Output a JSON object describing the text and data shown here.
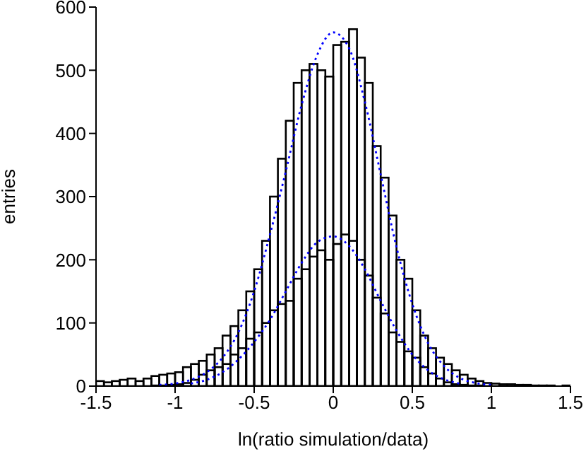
{
  "chart_data": {
    "type": "histogram",
    "xlabel": "ln(ratio simulation/data)",
    "ylabel": "entries",
    "xlim": [
      -1.5,
      1.5
    ],
    "xticks": [
      -1.5,
      -1,
      -0.5,
      0,
      0.5,
      1,
      1.5
    ],
    "ylim": [
      0,
      600
    ],
    "yticks": [
      0,
      100,
      200,
      300,
      400,
      500,
      600
    ],
    "bins": [
      -1.5,
      -1.45,
      -1.4,
      -1.35,
      -1.3,
      -1.25,
      -1.2,
      -1.15,
      -1.1,
      -1.05,
      -1.0,
      -0.95,
      -0.9,
      -0.85,
      -0.8,
      -0.75,
      -0.7,
      -0.65,
      -0.6,
      -0.55,
      -0.5,
      -0.45,
      -0.4,
      -0.35,
      -0.3,
      -0.25,
      -0.2,
      -0.15,
      -0.1,
      -0.05,
      0,
      0.05,
      0.1,
      0.15,
      0.2,
      0.25,
      0.3,
      0.35,
      0.4,
      0.45,
      0.5,
      0.55,
      0.6,
      0.65,
      0.7,
      0.75,
      0.8,
      0.85,
      0.9,
      0.95,
      1.0,
      1.05,
      1.1,
      1.15,
      1.2,
      1.25,
      1.3,
      1.35,
      1.4,
      1.45,
      1.5
    ],
    "series": [
      {
        "color": "#000000",
        "values": [
          8,
          6,
          8,
          10,
          12,
          8,
          12,
          16,
          18,
          20,
          22,
          30,
          35,
          40,
          50,
          60,
          80,
          95,
          120,
          150,
          185,
          230,
          300,
          360,
          420,
          480,
          500,
          510,
          500,
          490,
          540,
          545,
          565,
          520,
          480,
          380,
          330,
          270,
          200,
          170,
          120,
          80,
          60,
          45,
          35,
          25,
          18,
          12,
          8,
          5,
          4,
          3,
          3,
          2,
          2,
          1,
          1,
          1,
          0,
          1
        ]
      },
      {
        "color": "#000000",
        "values": [
          0,
          0,
          0,
          0,
          0,
          0,
          0,
          1,
          1,
          2,
          3,
          5,
          10,
          18,
          25,
          30,
          35,
          50,
          60,
          75,
          85,
          100,
          120,
          130,
          135,
          170,
          185,
          205,
          215,
          200,
          225,
          240,
          230,
          200,
          175,
          140,
          115,
          85,
          70,
          55,
          45,
          30,
          20,
          12,
          6,
          3,
          2,
          1,
          1,
          0,
          0,
          0,
          0,
          0,
          0,
          0,
          0,
          0,
          0,
          0
        ]
      },
      {
        "type": "line",
        "color": "#0000ff",
        "line_style": "dotted",
        "x": [
          -1.1,
          -1.0,
          -0.9,
          -0.8,
          -0.7,
          -0.6,
          -0.5,
          -0.4,
          -0.3,
          -0.2,
          -0.1,
          0,
          0.1,
          0.2,
          0.3,
          0.4,
          0.5,
          0.6,
          0.7,
          0.8,
          0.9,
          1.0
        ],
        "values": [
          2,
          4,
          10,
          22,
          45,
          85,
          150,
          240,
          340,
          445,
          525,
          560,
          535,
          450,
          335,
          220,
          130,
          68,
          32,
          13,
          5,
          2
        ]
      },
      {
        "type": "line",
        "color": "#0000ff",
        "line_style": "dotted",
        "x": [
          -0.9,
          -0.8,
          -0.7,
          -0.6,
          -0.5,
          -0.4,
          -0.3,
          -0.2,
          -0.1,
          0,
          0.1,
          0.2,
          0.3,
          0.4,
          0.5,
          0.6,
          0.7,
          0.8
        ],
        "values": [
          4,
          10,
          22,
          42,
          70,
          105,
          150,
          195,
          228,
          237,
          222,
          185,
          135,
          88,
          50,
          25,
          11,
          4
        ]
      }
    ]
  }
}
